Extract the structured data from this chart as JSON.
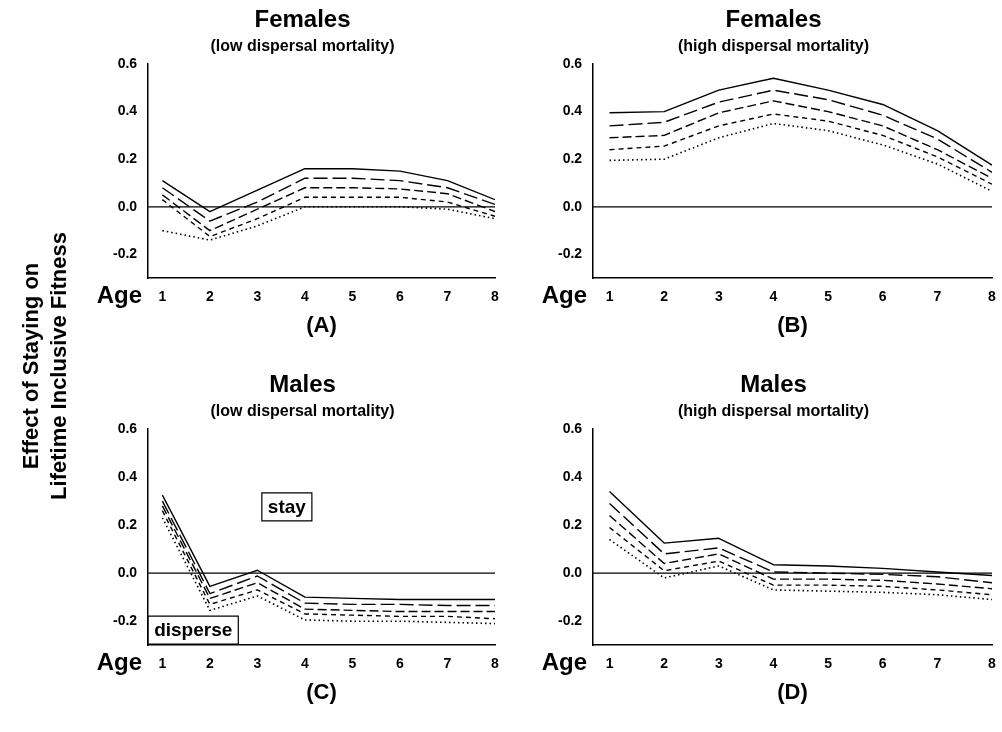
{
  "chart_data": [
    {
      "type": "line",
      "title": "Females",
      "subtitle": "(low dispersal mortality)",
      "xlabel": "Age",
      "ylabel": "Effect of Staying on Lifetime Inclusive Fitness",
      "x": [
        1,
        2,
        3,
        4,
        5,
        6,
        7,
        8
      ],
      "xlim": [
        0.7,
        8
      ],
      "xticks": [
        1,
        2,
        3,
        4,
        5,
        6,
        7,
        8
      ],
      "ylim": [
        -0.3,
        0.6
      ],
      "yticks": [
        {
          "value": -0.2,
          "label": "-0.2"
        },
        {
          "value": 0,
          "label": "0.0"
        },
        {
          "value": 0.2,
          "label": "0.2"
        },
        {
          "value": 0.4,
          "label": "0.4"
        },
        {
          "value": 0.6,
          "label": "0.6"
        }
      ],
      "grid": false,
      "legend": false,
      "marker": "none",
      "ref_lines": [
        {
          "axis": "y",
          "value": 0,
          "color": "#000000",
          "line_style": "solid"
        }
      ],
      "annotations": [
        "(A)"
      ],
      "series": [
        {
          "color": "#000000",
          "line_style": "solid",
          "values": [
            0.11,
            -0.02,
            0.07,
            0.16,
            0.16,
            0.15,
            0.11,
            0.03
          ]
        },
        {
          "color": "#000000",
          "line_style": "dashed",
          "values": [
            0.08,
            -0.06,
            0.02,
            0.12,
            0.12,
            0.11,
            0.08,
            0.01
          ]
        },
        {
          "color": "#000000",
          "line_style": "dashed",
          "values": [
            0.05,
            -0.1,
            -0.01,
            0.08,
            0.08,
            0.075,
            0.055,
            -0.02
          ]
        },
        {
          "color": "#000000",
          "line_style": "dashed",
          "values": [
            0.03,
            -0.125,
            -0.05,
            0.04,
            0.04,
            0.04,
            0.02,
            -0.04
          ]
        },
        {
          "color": "#000000",
          "line_style": "dotted",
          "values": [
            -0.1,
            -0.14,
            -0.08,
            0,
            0,
            0,
            -0.01,
            -0.05
          ]
        }
      ]
    },
    {
      "type": "line",
      "title": "Females",
      "subtitle": "(high dispersal mortality)",
      "xlabel": "Age",
      "x": [
        1,
        2,
        3,
        4,
        5,
        6,
        7,
        8
      ],
      "xlim": [
        0.7,
        8
      ],
      "xticks": [
        1,
        2,
        3,
        4,
        5,
        6,
        7,
        8
      ],
      "ylim": [
        -0.3,
        0.6
      ],
      "yticks": [
        {
          "value": -0.2,
          "label": "-0.2"
        },
        {
          "value": 0,
          "label": "0.0"
        },
        {
          "value": 0.2,
          "label": "0.2"
        },
        {
          "value": 0.4,
          "label": "0.4"
        },
        {
          "value": 0.6,
          "label": "0.6"
        }
      ],
      "grid": false,
      "legend": false,
      "marker": "none",
      "ref_lines": [
        {
          "axis": "y",
          "value": 0,
          "color": "#000000",
          "line_style": "solid"
        }
      ],
      "annotations": [
        "(B)"
      ],
      "series": [
        {
          "color": "#000000",
          "line_style": "solid",
          "values": [
            0.395,
            0.4,
            0.49,
            0.54,
            0.49,
            0.43,
            0.32,
            0.175
          ]
        },
        {
          "color": "#000000",
          "line_style": "dashed",
          "values": [
            0.34,
            0.355,
            0.44,
            0.49,
            0.45,
            0.385,
            0.285,
            0.145
          ]
        },
        {
          "color": "#000000",
          "line_style": "dashed",
          "values": [
            0.29,
            0.3,
            0.395,
            0.445,
            0.4,
            0.34,
            0.24,
            0.12
          ]
        },
        {
          "color": "#000000",
          "line_style": "dashed",
          "values": [
            0.24,
            0.255,
            0.34,
            0.39,
            0.36,
            0.3,
            0.21,
            0.095
          ]
        },
        {
          "color": "#000000",
          "line_style": "dotted",
          "values": [
            0.195,
            0.2,
            0.29,
            0.35,
            0.32,
            0.26,
            0.18,
            0.065
          ]
        }
      ]
    },
    {
      "type": "line",
      "title": "Males",
      "subtitle": "(low dispersal mortality)",
      "xlabel": "Age",
      "x": [
        1,
        2,
        3,
        4,
        5,
        6,
        7,
        8
      ],
      "xlim": [
        0.7,
        8
      ],
      "xticks": [
        1,
        2,
        3,
        4,
        5,
        6,
        7,
        8
      ],
      "ylim": [
        -0.3,
        0.6
      ],
      "yticks": [
        {
          "value": -0.2,
          "label": "-0.2"
        },
        {
          "value": 0,
          "label": "0.0"
        },
        {
          "value": 0.2,
          "label": "0.2"
        },
        {
          "value": 0.4,
          "label": "0.4"
        },
        {
          "value": 0.6,
          "label": "0.6"
        }
      ],
      "grid": false,
      "legend": false,
      "marker": "none",
      "ref_lines": [
        {
          "axis": "y",
          "value": 0,
          "color": "#000000",
          "line_style": "solid"
        }
      ],
      "annotations": [
        "(C)",
        "stay",
        "disperse"
      ],
      "series": [
        {
          "color": "#000000",
          "line_style": "solid",
          "values": [
            0.325,
            -0.055,
            0.012,
            -0.1,
            -0.105,
            -0.11,
            -0.11,
            -0.11
          ]
        },
        {
          "color": "#000000",
          "line_style": "dashed",
          "values": [
            0.3,
            -0.085,
            -0.012,
            -0.125,
            -0.13,
            -0.13,
            -0.135,
            -0.135
          ]
        },
        {
          "color": "#000000",
          "line_style": "dashed",
          "values": [
            0.28,
            -0.105,
            -0.04,
            -0.15,
            -0.155,
            -0.16,
            -0.16,
            -0.16
          ]
        },
        {
          "color": "#000000",
          "line_style": "dashed",
          "values": [
            0.26,
            -0.13,
            -0.07,
            -0.17,
            -0.175,
            -0.18,
            -0.18,
            -0.19
          ]
        },
        {
          "color": "#000000",
          "line_style": "dotted",
          "values": [
            0.23,
            -0.155,
            -0.095,
            -0.195,
            -0.2,
            -0.2,
            -0.205,
            -0.21
          ]
        }
      ]
    },
    {
      "type": "line",
      "title": "Males",
      "subtitle": "(high dispersal mortality)",
      "xlabel": "Age",
      "x": [
        1,
        2,
        3,
        4,
        5,
        6,
        7,
        8
      ],
      "xlim": [
        0.7,
        8
      ],
      "xticks": [
        1,
        2,
        3,
        4,
        5,
        6,
        7,
        8
      ],
      "ylim": [
        -0.3,
        0.6
      ],
      "yticks": [
        {
          "value": -0.2,
          "label": "-0.2"
        },
        {
          "value": 0,
          "label": "0.0"
        },
        {
          "value": 0.2,
          "label": "0.2"
        },
        {
          "value": 0.4,
          "label": "0.4"
        },
        {
          "value": 0.6,
          "label": "0.6"
        }
      ],
      "grid": false,
      "legend": false,
      "marker": "none",
      "ref_lines": [
        {
          "axis": "y",
          "value": 0,
          "color": "#000000",
          "line_style": "solid"
        }
      ],
      "annotations": [
        "(D)"
      ],
      "series": [
        {
          "color": "#000000",
          "line_style": "solid",
          "values": [
            0.34,
            0.125,
            0.145,
            0.035,
            0.03,
            0.02,
            0.005,
            -0.01
          ]
        },
        {
          "color": "#000000",
          "line_style": "dashed",
          "values": [
            0.29,
            0.08,
            0.105,
            0.005,
            0,
            -0.005,
            -0.015,
            -0.04
          ]
        },
        {
          "color": "#000000",
          "line_style": "dashed",
          "values": [
            0.24,
            0.04,
            0.08,
            -0.025,
            -0.025,
            -0.03,
            -0.045,
            -0.065
          ]
        },
        {
          "color": "#000000",
          "line_style": "dashed",
          "values": [
            0.19,
            0.01,
            0.05,
            -0.05,
            -0.05,
            -0.055,
            -0.07,
            -0.09
          ]
        },
        {
          "color": "#000000",
          "line_style": "dotted",
          "values": [
            0.14,
            -0.02,
            0.03,
            -0.07,
            -0.075,
            -0.08,
            -0.09,
            -0.11
          ]
        }
      ]
    }
  ]
}
